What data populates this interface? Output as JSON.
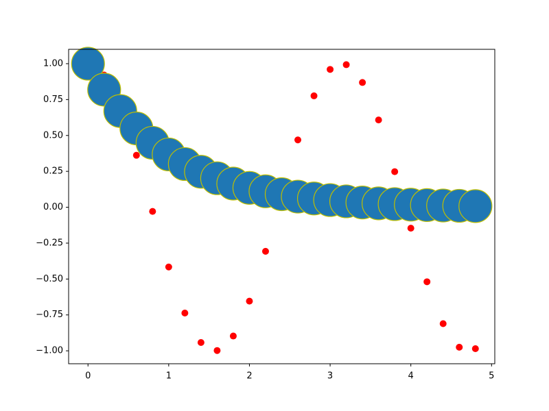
{
  "chart_data": {
    "type": "scatter",
    "x": [
      0,
      0.2,
      0.4,
      0.6,
      0.8,
      1.0,
      1.2,
      1.4,
      1.6,
      1.8,
      2.0,
      2.2,
      2.4,
      2.6,
      2.8,
      3.0,
      3.2,
      3.4,
      3.6,
      3.8,
      4.0,
      4.2,
      4.4,
      4.6,
      4.8
    ],
    "series": [
      {
        "color": "#ff0000",
        "values": [
          1,
          0.921,
          0.697,
          0.362,
          -0.029,
          -0.416,
          -0.737,
          -0.942,
          -0.998,
          -0.897,
          -0.654,
          -0.307,
          0.087,
          0.469,
          0.776,
          0.96,
          0.993,
          0.869,
          0.608,
          0.248,
          -0.146,
          -0.519,
          -0.811,
          -0.975,
          -0.985
        ]
      },
      {
        "color": "#1f77b4",
        "edgecolor": "#bfbf00",
        "values": [
          1,
          0.819,
          0.67,
          0.549,
          0.449,
          0.368,
          0.301,
          0.247,
          0.202,
          0.165,
          0.135,
          0.111,
          0.091,
          0.074,
          0.061,
          0.05,
          0.041,
          0.033,
          0.027,
          0.022,
          0.018,
          0.015,
          0.012,
          0.01,
          0.008
        ]
      }
    ],
    "xlim": [
      -0.24,
      5.04
    ],
    "ylim": [
      -1.09,
      1.1
    ],
    "xticks": [
      0,
      1,
      2,
      3,
      4,
      5
    ],
    "yticks": [
      {
        "value": -1,
        "label": "−1.00"
      },
      {
        "value": -0.75,
        "label": "−0.75"
      },
      {
        "value": -0.5,
        "label": "−0.50"
      },
      {
        "value": -0.25,
        "label": "−0.25"
      },
      {
        "value": 0,
        "label": "0.00"
      },
      {
        "value": 0.25,
        "label": "0.25"
      },
      {
        "value": 0.5,
        "label": "0.50"
      },
      {
        "value": 0.75,
        "label": "0.75"
      },
      {
        "value": 1,
        "label": "1.00"
      }
    ]
  }
}
